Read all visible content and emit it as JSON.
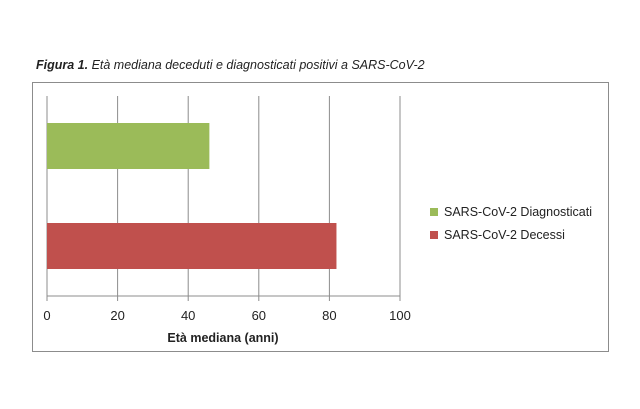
{
  "figure": {
    "caption_number": "Figura 1.",
    "caption_text": " Età mediana deceduti e diagnosticati positivi a SARS-CoV-2"
  },
  "chart_data": {
    "type": "bar",
    "orientation": "horizontal",
    "title": "",
    "xlabel": "Età mediana (anni)",
    "ylabel": "",
    "xlim": [
      0,
      100
    ],
    "xticks": [
      0,
      20,
      40,
      60,
      80,
      100
    ],
    "grid": true,
    "legend_position": "right",
    "series": [
      {
        "name": "SARS-CoV-2 Diagnosticati",
        "value": 46,
        "color": "#9bbb59"
      },
      {
        "name": "SARS-CoV-2 Decessi",
        "value": 82,
        "color": "#c0504d"
      }
    ]
  }
}
